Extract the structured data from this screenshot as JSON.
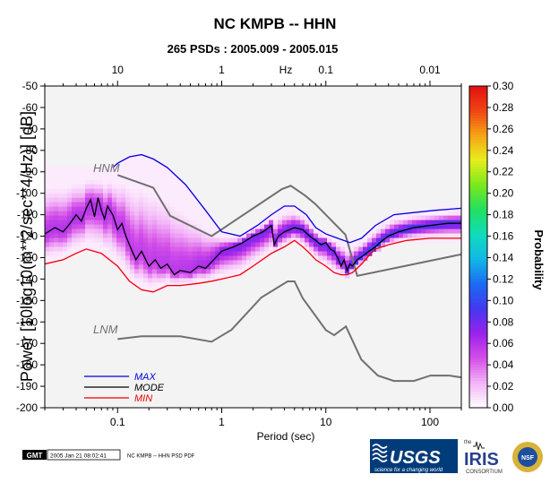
{
  "chart_data": {
    "type": "heatmap",
    "title": "NC KMPB -- HHN",
    "subtitle": "265 PSDs : 2005.009 - 2005.015",
    "xlabel": "Period (sec)",
    "ylabel": "Power [10log10(m**2/sec**4/Hz)] [dB]",
    "top_axis_label": "Hz",
    "x_scale": "log",
    "xlim": [
      0.02,
      200
    ],
    "ylim": [
      -200,
      -50
    ],
    "x_ticks": [
      {
        "v": 0.1,
        "label": "0.1"
      },
      {
        "v": 1,
        "label": "1"
      },
      {
        "v": 10,
        "label": "10"
      },
      {
        "v": 100,
        "label": "100"
      }
    ],
    "top_ticks": [
      {
        "v": 0.1,
        "label": "10"
      },
      {
        "v": 1,
        "label": "1"
      },
      {
        "v": 10,
        "label": "0.1"
      },
      {
        "v": 100,
        "label": "0.01"
      }
    ],
    "y_ticks": [
      -50,
      -60,
      -70,
      -80,
      -90,
      -100,
      -110,
      -120,
      -130,
      -140,
      -150,
      -160,
      -170,
      -180,
      -190,
      -200
    ],
    "colorbar": {
      "label": "Probability",
      "min": 0,
      "max": 0.3,
      "ticks": [
        "0.00",
        "0.02",
        "0.04",
        "0.06",
        "0.08",
        "0.10",
        "0.12",
        "0.14",
        "0.16",
        "0.18",
        "0.20",
        "0.22",
        "0.24",
        "0.26",
        "0.28",
        "0.30"
      ],
      "colors": [
        "#ffffff",
        "#f3b3f7",
        "#d44fe8",
        "#9a22ec",
        "#4338f0",
        "#1b6cf2",
        "#11b8e6",
        "#10dcbc",
        "#22e060",
        "#7ae81c",
        "#e8ee1c",
        "#f6a414",
        "#f04414",
        "#e21010"
      ]
    },
    "series": [
      {
        "name": "MAX",
        "color": "#0000dd",
        "x": [
          0.09,
          0.1,
          0.13,
          0.17,
          0.22,
          0.3,
          0.45,
          0.7,
          1.0,
          1.5,
          2.2,
          3.0,
          4.0,
          5.0,
          6.5,
          8.0,
          10,
          13,
          17,
          22,
          30,
          45,
          70,
          110,
          200
        ],
        "y": [
          -88,
          -86,
          -83,
          -82,
          -84,
          -88,
          -96,
          -108,
          -118,
          -120,
          -115,
          -110,
          -106,
          -106,
          -110,
          -116,
          -119,
          -121,
          -123,
          -121,
          -115,
          -110,
          -109,
          -108,
          -107
        ]
      },
      {
        "name": "MODE",
        "color": "#000000",
        "x": [
          0.02,
          0.025,
          0.03,
          0.035,
          0.04,
          0.045,
          0.05,
          0.055,
          0.06,
          0.065,
          0.07,
          0.075,
          0.08,
          0.09,
          0.1,
          0.11,
          0.12,
          0.13,
          0.15,
          0.17,
          0.2,
          0.23,
          0.26,
          0.3,
          0.35,
          0.4,
          0.5,
          0.6,
          0.7,
          0.8,
          1.0,
          1.3,
          1.6,
          2.0,
          2.5,
          3.0,
          3.2,
          3.5,
          4.0,
          5.0,
          6.0,
          7.0,
          8.0,
          9.0,
          10,
          11,
          12,
          13,
          14,
          15,
          16,
          17,
          18,
          20,
          23,
          26,
          30,
          35,
          40,
          50,
          70,
          100,
          150,
          200
        ],
        "y": [
          -119,
          -116,
          -118,
          -114,
          -110,
          -113,
          -107,
          -103,
          -111,
          -102,
          -108,
          -112,
          -106,
          -110,
          -117,
          -114,
          -120,
          -124,
          -131,
          -127,
          -134,
          -131,
          -135,
          -133,
          -138,
          -136,
          -137,
          -134,
          -135,
          -132,
          -127,
          -125,
          -123,
          -120,
          -118,
          -115,
          -124,
          -120,
          -118,
          -116,
          -117,
          -120,
          -122,
          -124,
          -123,
          -126,
          -127,
          -130,
          -134,
          -131,
          -136,
          -133,
          -134,
          -131,
          -129,
          -127,
          -125,
          -122,
          -120,
          -118,
          -116,
          -115,
          -114,
          -114
        ]
      },
      {
        "name": "MIN",
        "color": "#ee0000",
        "x": [
          0.02,
          0.03,
          0.04,
          0.05,
          0.07,
          0.1,
          0.13,
          0.17,
          0.22,
          0.3,
          0.4,
          0.6,
          0.8,
          1.0,
          1.5,
          2.0,
          3.0,
          4.0,
          5.0,
          6.0,
          7.0,
          8.0,
          10,
          12,
          14,
          16,
          18,
          20,
          23,
          26,
          30,
          40,
          60,
          100,
          200
        ],
        "y": [
          -133,
          -131,
          -128,
          -126,
          -128,
          -134,
          -141,
          -145,
          -146,
          -143,
          -143,
          -142,
          -141,
          -140,
          -138,
          -134,
          -128,
          -125,
          -122,
          -125,
          -128,
          -131,
          -134,
          -137,
          -138,
          -138,
          -137,
          -135,
          -132,
          -129,
          -126,
          -124,
          -122,
          -121,
          -121
        ]
      },
      {
        "name": "HNM",
        "color": "#707070",
        "x": [
          0.1,
          0.22,
          0.32,
          0.8,
          3.8,
          4.6,
          6.3,
          7.9,
          15.4,
          20,
          354
        ],
        "y": [
          -91.5,
          -97.4,
          -110.5,
          -120,
          -98,
          -96.5,
          -101,
          -105,
          -119.3,
          -138.5,
          -126
        ]
      },
      {
        "name": "LNM",
        "color": "#707070",
        "x": [
          0.1,
          0.17,
          0.4,
          0.8,
          1.24,
          2.4,
          4.3,
          5.0,
          6.0,
          10,
          12,
          15.6,
          21.9,
          31.6,
          45,
          70,
          101,
          154,
          328,
          600
        ],
        "y": [
          -168,
          -166.7,
          -166.7,
          -169.2,
          -163.7,
          -148.6,
          -141.1,
          -141.1,
          -149,
          -163.8,
          -166.2,
          -162.1,
          -177.5,
          -185,
          -187.5,
          -187.5,
          -185,
          -185,
          -187.5,
          -184.4
        ]
      }
    ],
    "legend": {
      "placement": "bottom-left",
      "entries": [
        {
          "name": "MAX",
          "color": "#0000dd"
        },
        {
          "name": "MODE",
          "color": "#000000"
        },
        {
          "name": "MIN",
          "color": "#ee0000"
        }
      ]
    },
    "annotations": [
      "HNM",
      "LNM"
    ]
  },
  "footer": {
    "gmt_badge": "GMT",
    "timestamp": "2005 Jan 21 08:02:41",
    "caption": "NC KMPB -- HHN PSD PDF"
  },
  "logos": {
    "usgs_name": "USGS",
    "usgs_tagline": "science for a changing world",
    "iris_prefix": "the",
    "iris_name": "IRIS",
    "iris_sub": "CONSORTIUM",
    "nsf_name": "NSF"
  }
}
